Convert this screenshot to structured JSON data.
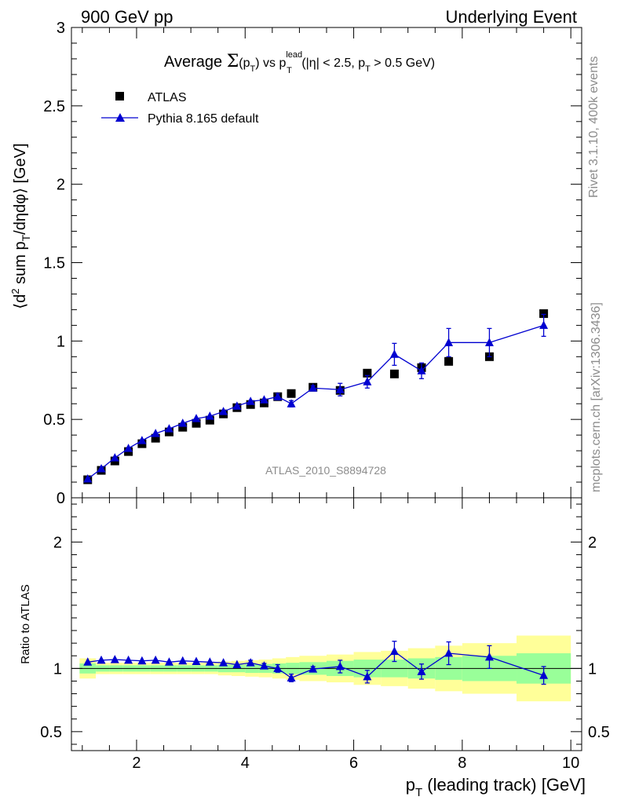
{
  "header": {
    "left": "900 GeV pp",
    "right": "Underlying Event"
  },
  "side": {
    "rivet": "Rivet 3.1.10,  400k events",
    "mcplots": "mcplots.cern.ch [arXiv:1306.3436]"
  },
  "colors": {
    "mc": "#0000d0",
    "data": "#000000",
    "band_inner": "#99ff99",
    "band_outer": "#ffff99",
    "watermark": "#8c8c8c"
  },
  "chart_data": [
    {
      "type": "scatter",
      "title": "Average Σ(pT) vs pT^lead (|η| < 2.5, pT > 0.5 GeV)",
      "title_parts": {
        "a": "Average ",
        "b": "Σ",
        "c": "(p",
        "d": "T",
        "e": ") vs p",
        "f": "lead",
        "g": "T",
        "h": " (|η| < 2.5, p",
        "i": "T",
        "j": " > 0.5 GeV)"
      },
      "ylabel": "⟨d² sum pT/dηdφ⟩ [GeV]",
      "ylabel_parts": {
        "a": "⟨d",
        "b": "2",
        "c": " sum p",
        "d": "T",
        "e": "/dηdφ⟩ [GeV]"
      },
      "watermark": "ATLAS_2010_S8894728",
      "xlim": [
        0.8,
        10.2
      ],
      "ylim": [
        0,
        3
      ],
      "yticks": [
        "0",
        "0.5",
        "1",
        "1.5",
        "2",
        "2.5",
        "3"
      ],
      "legend_position": "top-left",
      "series": [
        {
          "name": "ATLAS",
          "marker": "square",
          "x": [
            1.1,
            1.35,
            1.6,
            1.85,
            2.1,
            2.35,
            2.6,
            2.85,
            3.1,
            3.35,
            3.6,
            3.85,
            4.1,
            4.35,
            4.6,
            4.85,
            5.25,
            5.75,
            6.25,
            6.75,
            7.25,
            7.75,
            8.5,
            9.5
          ],
          "y": [
            0.115,
            0.175,
            0.235,
            0.295,
            0.345,
            0.38,
            0.42,
            0.45,
            0.475,
            0.495,
            0.535,
            0.575,
            0.595,
            0.605,
            0.645,
            0.665,
            0.705,
            0.685,
            0.795,
            0.79,
            0.83,
            0.87,
            0.9,
            1.175
          ]
        },
        {
          "name": "Pythia 8.165 default",
          "marker": "triangle",
          "line": true,
          "x": [
            1.1,
            1.35,
            1.6,
            1.85,
            2.1,
            2.35,
            2.6,
            2.85,
            3.1,
            3.35,
            3.6,
            3.85,
            4.1,
            4.35,
            4.6,
            4.85,
            5.25,
            5.75,
            6.25,
            6.75,
            7.25,
            7.75,
            8.5,
            9.5
          ],
          "y": [
            0.12,
            0.185,
            0.255,
            0.315,
            0.365,
            0.41,
            0.44,
            0.475,
            0.505,
            0.52,
            0.55,
            0.585,
            0.615,
            0.625,
            0.645,
            0.6,
            0.7,
            0.69,
            0.74,
            0.915,
            0.81,
            0.99,
            0.99,
            1.1
          ],
          "yerr": [
            0.005,
            0.005,
            0.005,
            0.005,
            0.005,
            0.005,
            0.005,
            0.005,
            0.005,
            0.005,
            0.005,
            0.005,
            0.005,
            0.005,
            0.02,
            0.02,
            0.015,
            0.04,
            0.04,
            0.07,
            0.05,
            0.09,
            0.09,
            0.07
          ]
        }
      ]
    },
    {
      "type": "scatter",
      "ylabel": "Ratio to ATLAS",
      "xlabel": "pT (leading track) [GeV]",
      "xlabel_parts": {
        "a": "p",
        "b": "T",
        "c": " (leading track) [GeV]"
      },
      "xlim": [
        0.8,
        10.2
      ],
      "ylim": [
        0.35,
        2.35
      ],
      "yticks": [
        "0.5",
        "1",
        "2"
      ],
      "xticks": [
        "2",
        "4",
        "6",
        "8",
        "10"
      ],
      "reference_line": 1,
      "bands": {
        "edges": [
          0.95,
          1.25,
          1.5,
          1.75,
          2.0,
          2.25,
          2.5,
          2.75,
          3.0,
          3.25,
          3.5,
          3.75,
          4.0,
          4.25,
          4.5,
          4.75,
          5.0,
          5.5,
          6.0,
          6.5,
          7.0,
          7.5,
          8.0,
          9.0,
          10.0
        ],
        "inner_low": [
          0.96,
          0.975,
          0.975,
          0.975,
          0.975,
          0.975,
          0.975,
          0.975,
          0.975,
          0.975,
          0.97,
          0.97,
          0.965,
          0.965,
          0.96,
          0.955,
          0.95,
          0.94,
          0.93,
          0.93,
          0.92,
          0.91,
          0.9,
          0.88
        ],
        "inner_high": [
          1.04,
          1.025,
          1.025,
          1.025,
          1.025,
          1.025,
          1.025,
          1.025,
          1.025,
          1.025,
          1.03,
          1.03,
          1.035,
          1.035,
          1.04,
          1.045,
          1.05,
          1.06,
          1.07,
          1.07,
          1.08,
          1.09,
          1.1,
          1.12
        ],
        "outer_low": [
          0.92,
          0.955,
          0.955,
          0.955,
          0.955,
          0.955,
          0.955,
          0.955,
          0.955,
          0.955,
          0.945,
          0.94,
          0.935,
          0.93,
          0.92,
          0.91,
          0.9,
          0.89,
          0.87,
          0.86,
          0.84,
          0.82,
          0.8,
          0.74
        ],
        "outer_high": [
          1.08,
          1.045,
          1.045,
          1.045,
          1.045,
          1.045,
          1.045,
          1.045,
          1.045,
          1.05,
          1.055,
          1.06,
          1.065,
          1.07,
          1.08,
          1.09,
          1.1,
          1.11,
          1.13,
          1.14,
          1.16,
          1.18,
          1.2,
          1.26
        ]
      },
      "series": [
        {
          "name": "Pythia 8.165 default",
          "marker": "triangle",
          "line": true,
          "x": [
            1.1,
            1.35,
            1.6,
            1.85,
            2.1,
            2.35,
            2.6,
            2.85,
            3.1,
            3.35,
            3.6,
            3.85,
            4.1,
            4.35,
            4.6,
            4.85,
            5.25,
            5.75,
            6.25,
            6.75,
            7.25,
            7.75,
            8.5,
            9.5
          ],
          "y": [
            1.05,
            1.065,
            1.07,
            1.065,
            1.06,
            1.065,
            1.05,
            1.06,
            1.055,
            1.05,
            1.045,
            1.03,
            1.045,
            1.02,
            1.0,
            0.925,
            0.995,
            1.015,
            0.935,
            1.135,
            0.975,
            1.12,
            1.09,
            0.945
          ],
          "yerr": [
            0.01,
            0.01,
            0.01,
            0.01,
            0.01,
            0.01,
            0.01,
            0.01,
            0.01,
            0.01,
            0.01,
            0.01,
            0.02,
            0.02,
            0.03,
            0.03,
            0.02,
            0.05,
            0.05,
            0.08,
            0.06,
            0.09,
            0.09,
            0.07
          ]
        }
      ]
    }
  ]
}
